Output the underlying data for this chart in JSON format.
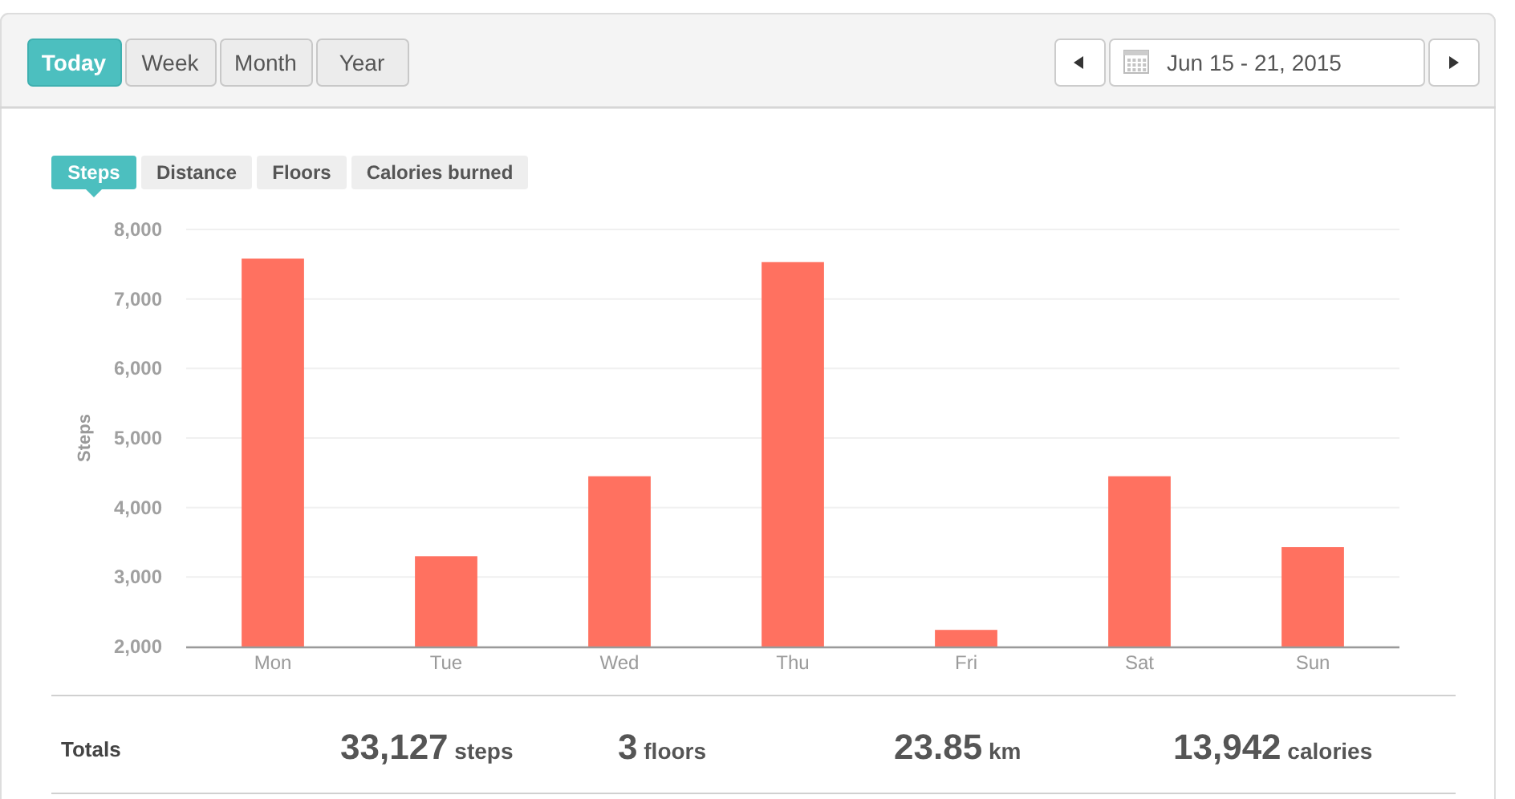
{
  "chart_data": {
    "type": "bar",
    "ylabel": "Steps",
    "categories": [
      "Mon",
      "Tue",
      "Wed",
      "Thu",
      "Fri",
      "Sat",
      "Sun"
    ],
    "values": [
      7580,
      3300,
      4450,
      7530,
      2240,
      4450,
      3430
    ],
    "color": "#ff7160",
    "ylim": [
      2000,
      8000
    ],
    "yticks": [
      {
        "value": 2000,
        "label": "2,000"
      },
      {
        "value": 3000,
        "label": "3,000"
      },
      {
        "value": 4000,
        "label": "4,000"
      },
      {
        "value": 5000,
        "label": "5,000"
      },
      {
        "value": 6000,
        "label": "6,000"
      },
      {
        "value": 7000,
        "label": "7,000"
      },
      {
        "value": 8000,
        "label": "8,000"
      }
    ],
    "grid": "y",
    "annotations": [
      "Today",
      "Week",
      "Month",
      "Year",
      "Jun 15 - 21, 2015",
      "Steps",
      "Distance",
      "Floors",
      "Calories burned",
      "Totals",
      "33,127 steps",
      "3 floors",
      "23.85 km",
      "13,942 calories"
    ]
  }
}
